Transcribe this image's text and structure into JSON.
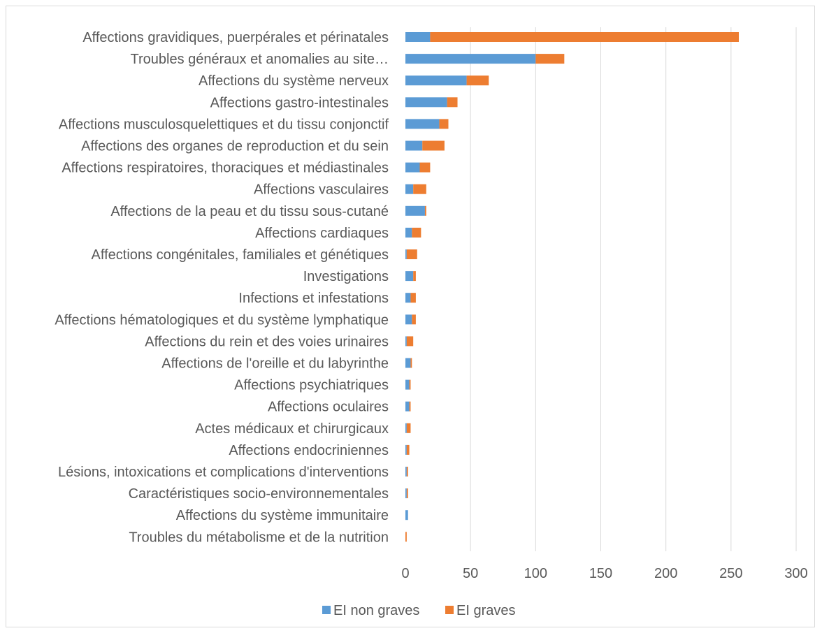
{
  "chart_data": {
    "type": "bar",
    "orientation": "horizontal",
    "stacked": true,
    "title": "",
    "xlabel": "",
    "ylabel": "",
    "xlim": [
      0,
      300
    ],
    "x_ticks": [
      0,
      50,
      100,
      150,
      200,
      250,
      300
    ],
    "grid": true,
    "legend_position": "bottom",
    "categories": [
      "Affections gravidiques, puerpérales et périnatales",
      "Troubles généraux et anomalies au site…",
      "Affections du système nerveux",
      "Affections gastro-intestinales",
      "Affections musculosquelettiques et du tissu conjonctif",
      "Affections des organes de reproduction et du sein",
      "Affections respiratoires, thoraciques et médiastinales",
      "Affections vasculaires",
      "Affections de la peau et du tissu sous-cutané",
      "Affections cardiaques",
      "Affections congénitales, familiales et génétiques",
      "Investigations",
      "Infections et infestations",
      "Affections hématologiques et du système lymphatique",
      "Affections du rein et des voies urinaires",
      "Affections de l'oreille et du labyrinthe",
      "Affections psychiatriques",
      "Affections oculaires",
      "Actes médicaux et chirurgicaux",
      "Affections endocriniennes",
      "Lésions, intoxications et complications d'interventions",
      "Caractéristiques socio-environnementales",
      "Affections du système immunitaire",
      "Troubles du métabolisme et de la nutrition"
    ],
    "series": [
      {
        "name": "EI non graves",
        "color": "#5b9bd5",
        "values": [
          19,
          100,
          47,
          32,
          26,
          13,
          11,
          6,
          15,
          5,
          1,
          6,
          4,
          5,
          1,
          4,
          3,
          3,
          1,
          1,
          1,
          1,
          2,
          0
        ]
      },
      {
        "name": "EI graves",
        "color": "#ed7d31",
        "values": [
          237,
          22,
          17,
          8,
          7,
          17,
          8,
          10,
          1,
          7,
          8,
          2,
          4,
          3,
          5,
          1,
          1,
          1,
          3,
          2,
          1,
          1,
          0,
          1
        ]
      }
    ]
  }
}
